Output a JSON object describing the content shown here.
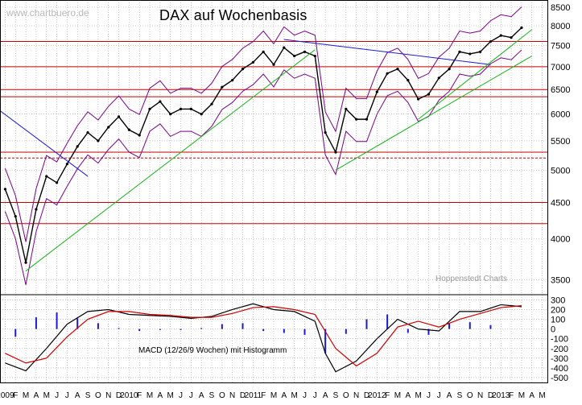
{
  "watermark": "www.chartbuero.de",
  "title": "DAX  auf Wochenbasis",
  "source": "Hoppenstedt Charts",
  "macd_label": "MACD (12/26/9 Wochen) mit Histogramm",
  "colors": {
    "price": "#000000",
    "bollinger": "#7a008a",
    "moving_average": "#5a5a5a",
    "downtrend": "#1a1ad6",
    "uptrend": "#18b318",
    "support_resistance": "#c40000",
    "grid": "#9e9e9e",
    "macd": "#000000",
    "signal": "#d00000",
    "histogram": "#1a1ad6"
  },
  "chart_data": [
    {
      "type": "line",
      "name": "price",
      "title": "DAX  auf Wochenbasis",
      "y_scale": "log",
      "ylim": [
        3350,
        8700
      ],
      "y_ticks": [
        3500,
        4000,
        4500,
        5000,
        5500,
        6000,
        6500,
        7000,
        7500,
        8000,
        8500
      ],
      "x_ticks": [
        {
          "label": "2009",
          "year": 2009,
          "month": 1
        },
        {
          "label": "F",
          "year": 2009,
          "month": 2
        },
        {
          "label": "M",
          "year": 2009,
          "month": 3
        },
        {
          "label": "A",
          "year": 2009,
          "month": 4
        },
        {
          "label": "M",
          "year": 2009,
          "month": 5
        },
        {
          "label": "J",
          "year": 2009,
          "month": 6
        },
        {
          "label": "J",
          "year": 2009,
          "month": 7
        },
        {
          "label": "A",
          "year": 2009,
          "month": 8
        },
        {
          "label": "S",
          "year": 2009,
          "month": 9
        },
        {
          "label": "O",
          "year": 2009,
          "month": 10
        },
        {
          "label": "N",
          "year": 2009,
          "month": 11
        },
        {
          "label": "D",
          "year": 2009,
          "month": 12
        },
        {
          "label": "2010",
          "year": 2010,
          "month": 1
        },
        {
          "label": "F",
          "year": 2010,
          "month": 2
        },
        {
          "label": "M",
          "year": 2010,
          "month": 3
        },
        {
          "label": "A",
          "year": 2010,
          "month": 4
        },
        {
          "label": "M",
          "year": 2010,
          "month": 5
        },
        {
          "label": "J",
          "year": 2010,
          "month": 6
        },
        {
          "label": "J",
          "year": 2010,
          "month": 7
        },
        {
          "label": "A",
          "year": 2010,
          "month": 8
        },
        {
          "label": "S",
          "year": 2010,
          "month": 9
        },
        {
          "label": "O",
          "year": 2010,
          "month": 10
        },
        {
          "label": "N",
          "year": 2010,
          "month": 11
        },
        {
          "label": "D",
          "year": 2010,
          "month": 12
        },
        {
          "label": "2011",
          "year": 2011,
          "month": 1
        },
        {
          "label": "F",
          "year": 2011,
          "month": 2
        },
        {
          "label": "M",
          "year": 2011,
          "month": 3
        },
        {
          "label": "A",
          "year": 2011,
          "month": 4
        },
        {
          "label": "M",
          "year": 2011,
          "month": 5
        },
        {
          "label": "J",
          "year": 2011,
          "month": 6
        },
        {
          "label": "J",
          "year": 2011,
          "month": 7
        },
        {
          "label": "A",
          "year": 2011,
          "month": 8
        },
        {
          "label": "S",
          "year": 2011,
          "month": 9
        },
        {
          "label": "O",
          "year": 2011,
          "month": 10
        },
        {
          "label": "N",
          "year": 2011,
          "month": 11
        },
        {
          "label": "D",
          "year": 2011,
          "month": 12
        },
        {
          "label": "2012",
          "year": 2012,
          "month": 1
        },
        {
          "label": "F",
          "year": 2012,
          "month": 2
        },
        {
          "label": "M",
          "year": 2012,
          "month": 3
        },
        {
          "label": "A",
          "year": 2012,
          "month": 4
        },
        {
          "label": "M",
          "year": 2012,
          "month": 5
        },
        {
          "label": "J",
          "year": 2012,
          "month": 6
        },
        {
          "label": "J",
          "year": 2012,
          "month": 7
        },
        {
          "label": "A",
          "year": 2012,
          "month": 8
        },
        {
          "label": "S",
          "year": 2012,
          "month": 9
        },
        {
          "label": "O",
          "year": 2012,
          "month": 10
        },
        {
          "label": "N",
          "year": 2012,
          "month": 11
        },
        {
          "label": "D",
          "year": 2012,
          "month": 12
        },
        {
          "label": "2013",
          "year": 2013,
          "month": 1
        },
        {
          "label": "F",
          "year": 2013,
          "month": 2
        },
        {
          "label": "M",
          "year": 2013,
          "month": 3
        },
        {
          "label": "A",
          "year": 2013,
          "month": 4
        },
        {
          "label": "M",
          "year": 2013,
          "month": 5
        }
      ],
      "grid": true,
      "price_points": [
        [
          "2009-01",
          4700
        ],
        [
          "2009-02",
          4300
        ],
        [
          "2009-03",
          3700
        ],
        [
          "2009-04",
          4400
        ],
        [
          "2009-05",
          4900
        ],
        [
          "2009-06",
          4800
        ],
        [
          "2009-07",
          5100
        ],
        [
          "2009-08",
          5400
        ],
        [
          "2009-09",
          5650
        ],
        [
          "2009-10",
          5500
        ],
        [
          "2009-11",
          5750
        ],
        [
          "2009-12",
          5950
        ],
        [
          "2010-01",
          5700
        ],
        [
          "2010-02",
          5600
        ],
        [
          "2010-03",
          6100
        ],
        [
          "2010-04",
          6250
        ],
        [
          "2010-05",
          6000
        ],
        [
          "2010-06",
          6100
        ],
        [
          "2010-07",
          6100
        ],
        [
          "2010-08",
          6000
        ],
        [
          "2010-09",
          6200
        ],
        [
          "2010-10",
          6550
        ],
        [
          "2010-11",
          6700
        ],
        [
          "2010-12",
          6950
        ],
        [
          "2011-01",
          7100
        ],
        [
          "2011-02",
          7350
        ],
        [
          "2011-03",
          7050
        ],
        [
          "2011-04",
          7450
        ],
        [
          "2011-05",
          7250
        ],
        [
          "2011-06",
          7350
        ],
        [
          "2011-07",
          7250
        ],
        [
          "2011-08",
          5650
        ],
        [
          "2011-09",
          5300
        ],
        [
          "2011-10",
          6100
        ],
        [
          "2011-11",
          5900
        ],
        [
          "2011-12",
          5900
        ],
        [
          "2012-01",
          6450
        ],
        [
          "2012-02",
          6850
        ],
        [
          "2012-03",
          6950
        ],
        [
          "2012-04",
          6700
        ],
        [
          "2012-05",
          6300
        ],
        [
          "2012-06",
          6400
        ],
        [
          "2012-07",
          6750
        ],
        [
          "2012-08",
          6950
        ],
        [
          "2012-09",
          7350
        ],
        [
          "2012-10",
          7300
        ],
        [
          "2012-11",
          7350
        ],
        [
          "2012-12",
          7600
        ],
        [
          "2013-01",
          7750
        ],
        [
          "2013-02",
          7700
        ],
        [
          "2013-03",
          7950
        ]
      ],
      "horizontal_lines": [
        7600,
        7000,
        6500,
        6350,
        5300,
        5200,
        4500,
        4200
      ],
      "downtrend_lines": [
        {
          "from": [
            "2008-11",
            6300
          ],
          "to": [
            "2009-09",
            4900
          ]
        },
        {
          "from": [
            "2011-04",
            7650
          ],
          "to": [
            "2012-12",
            7050
          ]
        }
      ],
      "uptrend_lines": [
        {
          "from": [
            "2009-03",
            3600
          ],
          "to": [
            "2011-07",
            7400
          ]
        },
        {
          "from": [
            "2011-09",
            5000
          ],
          "to": [
            "2013-04",
            7250
          ]
        },
        {
          "from": [
            "2012-05",
            5900
          ],
          "to": [
            "2013-04",
            7900
          ]
        }
      ]
    },
    {
      "type": "line",
      "name": "macd",
      "ylim": [
        -550,
        320
      ],
      "y_ticks": [
        300,
        200,
        100,
        0,
        -100,
        -200,
        -300,
        -400,
        -500
      ],
      "series": [
        {
          "name": "MACD",
          "values": [
            [
              "2009-01",
              -350
            ],
            [
              "2009-03",
              -430
            ],
            [
              "2009-05",
              -200
            ],
            [
              "2009-07",
              50
            ],
            [
              "2009-09",
              180
            ],
            [
              "2009-11",
              200
            ],
            [
              "2010-01",
              150
            ],
            [
              "2010-03",
              140
            ],
            [
              "2010-05",
              130
            ],
            [
              "2010-07",
              110
            ],
            [
              "2010-09",
              130
            ],
            [
              "2010-11",
              200
            ],
            [
              "2011-01",
              260
            ],
            [
              "2011-03",
              200
            ],
            [
              "2011-05",
              180
            ],
            [
              "2011-07",
              80
            ],
            [
              "2011-08",
              -250
            ],
            [
              "2011-09",
              -440
            ],
            [
              "2011-11",
              -330
            ],
            [
              "2012-01",
              -100
            ],
            [
              "2012-03",
              100
            ],
            [
              "2012-05",
              0
            ],
            [
              "2012-07",
              -20
            ],
            [
              "2012-09",
              180
            ],
            [
              "2012-11",
              180
            ],
            [
              "2013-01",
              250
            ],
            [
              "2013-03",
              230
            ]
          ]
        },
        {
          "name": "Signal",
          "values": [
            [
              "2009-01",
              -250
            ],
            [
              "2009-03",
              -350
            ],
            [
              "2009-05",
              -300
            ],
            [
              "2009-07",
              -80
            ],
            [
              "2009-09",
              100
            ],
            [
              "2009-11",
              180
            ],
            [
              "2010-01",
              180
            ],
            [
              "2010-03",
              150
            ],
            [
              "2010-05",
              140
            ],
            [
              "2010-07",
              120
            ],
            [
              "2010-09",
              120
            ],
            [
              "2010-11",
              160
            ],
            [
              "2011-01",
              220
            ],
            [
              "2011-03",
              230
            ],
            [
              "2011-05",
              200
            ],
            [
              "2011-07",
              150
            ],
            [
              "2011-09",
              -200
            ],
            [
              "2011-11",
              -380
            ],
            [
              "2012-01",
              -250
            ],
            [
              "2012-03",
              20
            ],
            [
              "2012-05",
              80
            ],
            [
              "2012-07",
              20
            ],
            [
              "2012-09",
              100
            ],
            [
              "2012-11",
              160
            ],
            [
              "2013-01",
              220
            ],
            [
              "2013-03",
              240
            ]
          ]
        },
        {
          "name": "Histogramm",
          "values": [
            [
              "2009-02",
              -80
            ],
            [
              "2009-04",
              120
            ],
            [
              "2009-06",
              170
            ],
            [
              "2009-08",
              110
            ],
            [
              "2009-10",
              60
            ],
            [
              "2009-12",
              10
            ],
            [
              "2010-02",
              -20
            ],
            [
              "2010-04",
              -10
            ],
            [
              "2010-06",
              -10
            ],
            [
              "2010-08",
              10
            ],
            [
              "2010-10",
              50
            ],
            [
              "2010-12",
              60
            ],
            [
              "2011-02",
              -20
            ],
            [
              "2011-04",
              -40
            ],
            [
              "2011-06",
              -60
            ],
            [
              "2011-08",
              -250
            ],
            [
              "2011-10",
              -50
            ],
            [
              "2011-12",
              100
            ],
            [
              "2012-02",
              150
            ],
            [
              "2012-04",
              -40
            ],
            [
              "2012-06",
              -60
            ],
            [
              "2012-08",
              60
            ],
            [
              "2012-10",
              70
            ],
            [
              "2012-12",
              40
            ],
            [
              "2013-02",
              0
            ]
          ]
        }
      ]
    }
  ]
}
